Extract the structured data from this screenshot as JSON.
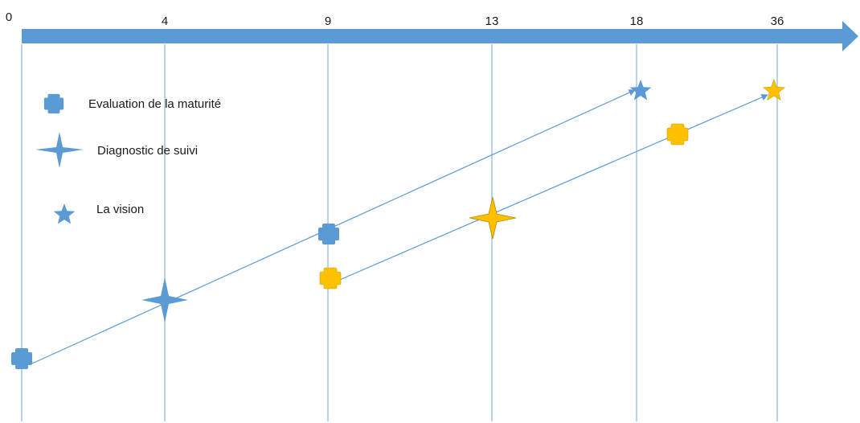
{
  "timeline": {
    "ticks": [
      "0",
      "4",
      "9",
      "13",
      "18",
      "36"
    ],
    "axis_color": "#5b9bd5"
  },
  "legend": {
    "items": [
      {
        "label": "Evaluation de la maturité",
        "icon": "rounded-cross-icon"
      },
      {
        "label": "Diagnostic de suivi",
        "icon": "four-point-star-icon"
      },
      {
        "label": "La vision",
        "icon": "five-point-star-icon"
      }
    ]
  },
  "colors": {
    "blue": "#5b9bd5",
    "gold": "#ffc000",
    "gold_stroke": "#c9a300",
    "gridline": "#9dc3e6",
    "connector": "#5b9bd5"
  },
  "paths": [
    {
      "color": "blue",
      "milestones": [
        "Evaluation de la maturité",
        "Diagnostic de suivi",
        "Evaluation de la maturité",
        "La vision"
      ]
    },
    {
      "color": "gold",
      "milestones": [
        "Evaluation de la maturité",
        "Diagnostic de suivi",
        "Evaluation de la maturité",
        "La vision"
      ]
    }
  ]
}
